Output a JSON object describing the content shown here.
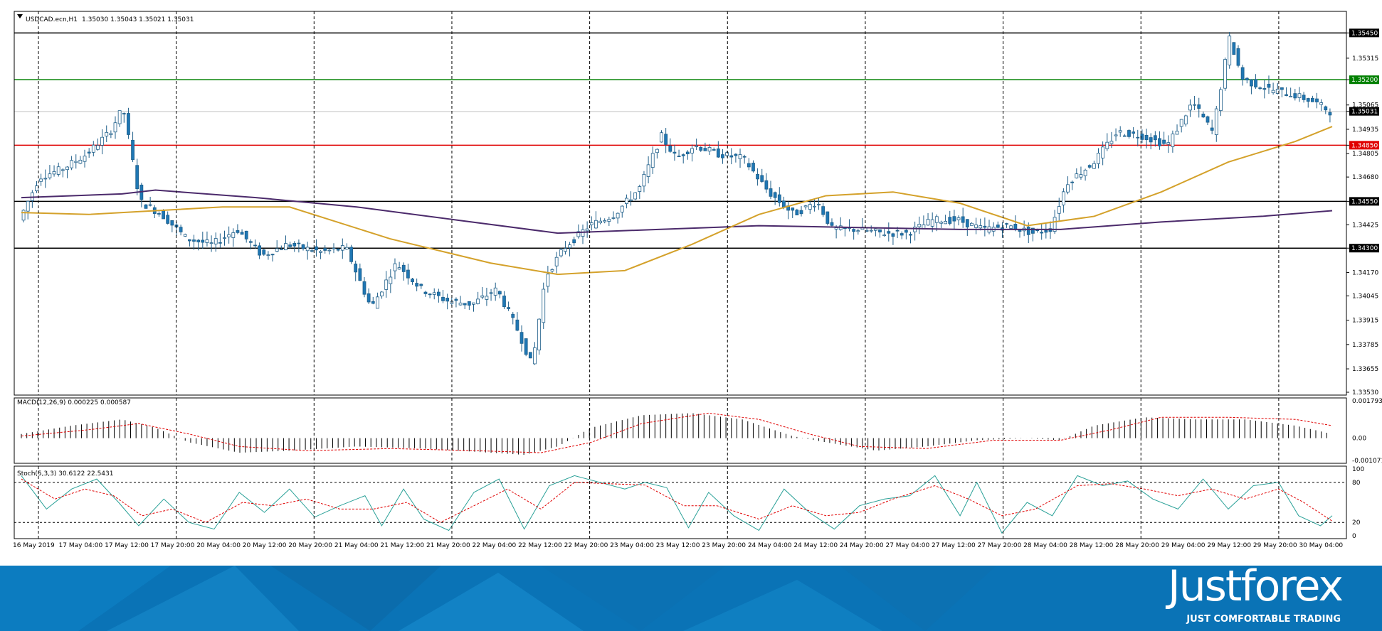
{
  "header": {
    "symbol": "USDCAD.ecn,H1",
    "ohlc": "1.35030 1.35043 1.35021 1.35031"
  },
  "price_axis": {
    "ticks": [
      "1.35450",
      "1.35315",
      "1.35200",
      "1.35065",
      "1.35031",
      "1.34935",
      "1.34850",
      "1.34805",
      "1.34680",
      "1.34550",
      "1.34425",
      "1.34300",
      "1.34170",
      "1.34045",
      "1.33915",
      "1.33785",
      "1.33655",
      "1.33530"
    ],
    "highlighted": [
      {
        "value": "1.35450",
        "color": "#000000"
      },
      {
        "value": "1.35200",
        "color": "#008000"
      },
      {
        "value": "1.35031",
        "color": "#000000"
      },
      {
        "value": "1.34850",
        "color": "#e00000"
      },
      {
        "value": "1.34550",
        "color": "#000000"
      },
      {
        "value": "1.34300",
        "color": "#000000"
      }
    ]
  },
  "macd": {
    "label": "MACD(12,26,9) 0.000225 0.000587",
    "ticks": [
      "0.001793",
      "0.00",
      "-0.001071"
    ]
  },
  "stoch": {
    "label": "Stoch(5,3,3) 30.6122 22.5431",
    "ticks": [
      "100",
      "80",
      "20",
      "0"
    ]
  },
  "time_axis": [
    "16 May 2019",
    "17 May 04:00",
    "17 May 12:00",
    "17 May 20:00",
    "20 May 04:00",
    "20 May 12:00",
    "20 May 20:00",
    "21 May 04:00",
    "21 May 12:00",
    "21 May 20:00",
    "22 May 04:00",
    "22 May 12:00",
    "22 May 20:00",
    "23 May 04:00",
    "23 May 12:00",
    "23 May 20:00",
    "24 May 04:00",
    "24 May 12:00",
    "24 May 20:00",
    "27 May 04:00",
    "27 May 12:00",
    "27 May 20:00",
    "28 May 04:00",
    "28 May 12:00",
    "28 May 20:00",
    "29 May 04:00",
    "29 May 12:00",
    "29 May 20:00",
    "30 May 04:00"
  ],
  "branding": {
    "logo": "Justforex",
    "tagline": "JUST COMFORTABLE TRADING"
  },
  "colors": {
    "up_candle": "#ffffff",
    "down_candle": "#1f77b4",
    "ma_fast": "#d4a12a",
    "ma_slow": "#4b2a6b",
    "macd_signal": "#e00000",
    "stoch_main": "#2aa198",
    "stoch_signal": "#e00000",
    "footer_bg": "#0a73b6"
  },
  "chart_data": {
    "type": "candlestick",
    "symbol": "USDCAD",
    "timeframe": "H1",
    "ylim": [
      1.3353,
      1.3555
    ],
    "horizontal_levels": [
      {
        "value": 1.3545,
        "color": "#000000"
      },
      {
        "value": 1.352,
        "color": "#008000"
      },
      {
        "value": 1.3485,
        "color": "#e00000"
      },
      {
        "value": 1.3455,
        "color": "#000000"
      },
      {
        "value": 1.343,
        "color": "#000000"
      }
    ],
    "price_path": [
      [
        0,
        1.3445
      ],
      [
        12,
        1.3468
      ],
      [
        25,
        1.3472
      ],
      [
        40,
        1.348
      ],
      [
        54,
        1.3492
      ],
      [
        62,
        1.3505
      ],
      [
        72,
        1.3455
      ],
      [
        85,
        1.3448
      ],
      [
        100,
        1.3435
      ],
      [
        115,
        1.3432
      ],
      [
        130,
        1.344
      ],
      [
        145,
        1.3426
      ],
      [
        160,
        1.3432
      ],
      [
        180,
        1.3428
      ],
      [
        195,
        1.343
      ],
      [
        210,
        1.3398
      ],
      [
        225,
        1.3422
      ],
      [
        240,
        1.3408
      ],
      [
        255,
        1.3402
      ],
      [
        270,
        1.34
      ],
      [
        285,
        1.3408
      ],
      [
        298,
        1.3385
      ],
      [
        306,
        1.3367
      ],
      [
        314,
        1.3415
      ],
      [
        325,
        1.343
      ],
      [
        340,
        1.3442
      ],
      [
        355,
        1.3448
      ],
      [
        370,
        1.3462
      ],
      [
        383,
        1.349
      ],
      [
        392,
        1.3478
      ],
      [
        403,
        1.3485
      ],
      [
        418,
        1.348
      ],
      [
        432,
        1.3478
      ],
      [
        447,
        1.346
      ],
      [
        462,
        1.3448
      ],
      [
        476,
        1.3455
      ],
      [
        485,
        1.344
      ],
      [
        500,
        1.344
      ],
      [
        515,
        1.3438
      ],
      [
        530,
        1.3438
      ],
      [
        545,
        1.3445
      ],
      [
        560,
        1.3445
      ],
      [
        575,
        1.344
      ],
      [
        590,
        1.3442
      ],
      [
        605,
        1.3438
      ],
      [
        615,
        1.344
      ],
      [
        625,
        1.3465
      ],
      [
        640,
        1.3475
      ],
      [
        655,
        1.3492
      ],
      [
        670,
        1.349
      ],
      [
        685,
        1.3485
      ],
      [
        700,
        1.3508
      ],
      [
        712,
        1.3492
      ],
      [
        722,
        1.3542
      ],
      [
        730,
        1.352
      ],
      [
        745,
        1.3515
      ],
      [
        760,
        1.3512
      ],
      [
        773,
        1.3508
      ],
      [
        782,
        1.3503
      ]
    ],
    "ma_fast": [
      [
        0,
        1.3449
      ],
      [
        40,
        1.3448
      ],
      [
        80,
        1.345
      ],
      [
        120,
        1.3452
      ],
      [
        160,
        1.3452
      ],
      [
        220,
        1.3435
      ],
      [
        280,
        1.3422
      ],
      [
        320,
        1.3416
      ],
      [
        360,
        1.3418
      ],
      [
        400,
        1.3432
      ],
      [
        440,
        1.3448
      ],
      [
        480,
        1.3458
      ],
      [
        520,
        1.346
      ],
      [
        560,
        1.3454
      ],
      [
        600,
        1.3442
      ],
      [
        640,
        1.3447
      ],
      [
        680,
        1.346
      ],
      [
        720,
        1.3476
      ],
      [
        760,
        1.3487
      ],
      [
        782,
        1.3495
      ]
    ],
    "ma_slow": [
      [
        0,
        1.3457
      ],
      [
        60,
        1.3459
      ],
      [
        80,
        1.3461
      ],
      [
        140,
        1.3457
      ],
      [
        200,
        1.3452
      ],
      [
        260,
        1.3445
      ],
      [
        320,
        1.3438
      ],
      [
        380,
        1.344
      ],
      [
        440,
        1.3442
      ],
      [
        500,
        1.3441
      ],
      [
        560,
        1.344
      ],
      [
        620,
        1.344
      ],
      [
        680,
        1.3444
      ],
      [
        740,
        1.3447
      ],
      [
        782,
        1.345
      ]
    ],
    "macd": {
      "ylim": [
        -0.001071,
        0.001793
      ],
      "histogram": [
        [
          0,
          0.0002
        ],
        [
          30,
          0.0006
        ],
        [
          60,
          0.0009
        ],
        [
          80,
          0.0005
        ],
        [
          100,
          -0.0002
        ],
        [
          130,
          -0.0007
        ],
        [
          160,
          -0.0006
        ],
        [
          200,
          -0.0004
        ],
        [
          240,
          -0.0005
        ],
        [
          280,
          -0.0007
        ],
        [
          300,
          -0.0008
        ],
        [
          320,
          -0.0004
        ],
        [
          340,
          0.0005
        ],
        [
          370,
          0.0011
        ],
        [
          400,
          0.0012
        ],
        [
          430,
          0.0009
        ],
        [
          460,
          0.0001
        ],
        [
          480,
          -0.0002
        ],
        [
          510,
          -0.0006
        ],
        [
          540,
          -0.0004
        ],
        [
          570,
          -0.0001
        ],
        [
          600,
          0.0
        ],
        [
          620,
          -0.0001
        ],
        [
          640,
          0.0006
        ],
        [
          670,
          0.001
        ],
        [
          700,
          0.0009
        ],
        [
          730,
          0.0009
        ],
        [
          760,
          0.0006
        ],
        [
          782,
          0.0002
        ]
      ],
      "signal": [
        [
          0,
          0.0001
        ],
        [
          40,
          0.0004
        ],
        [
          70,
          0.0007
        ],
        [
          100,
          0.0002
        ],
        [
          130,
          -0.0004
        ],
        [
          170,
          -0.0006
        ],
        [
          220,
          -0.0005
        ],
        [
          270,
          -0.0006
        ],
        [
          310,
          -0.0007
        ],
        [
          340,
          -0.0002
        ],
        [
          370,
          0.0007
        ],
        [
          410,
          0.0012
        ],
        [
          440,
          0.0009
        ],
        [
          470,
          0.0002
        ],
        [
          500,
          -0.0004
        ],
        [
          540,
          -0.0005
        ],
        [
          580,
          -0.0001
        ],
        [
          620,
          -0.0001
        ],
        [
          650,
          0.0004
        ],
        [
          680,
          0.001
        ],
        [
          720,
          0.001
        ],
        [
          760,
          0.0009
        ],
        [
          782,
          0.0006
        ]
      ]
    },
    "stoch": {
      "ylim": [
        0,
        100
      ],
      "levels": [
        80,
        20
      ],
      "main": [
        [
          0,
          90
        ],
        [
          15,
          40
        ],
        [
          30,
          70
        ],
        [
          45,
          85
        ],
        [
          58,
          50
        ],
        [
          70,
          15
        ],
        [
          85,
          55
        ],
        [
          100,
          20
        ],
        [
          115,
          10
        ],
        [
          130,
          65
        ],
        [
          145,
          35
        ],
        [
          160,
          70
        ],
        [
          175,
          28
        ],
        [
          190,
          45
        ],
        [
          205,
          60
        ],
        [
          215,
          15
        ],
        [
          228,
          70
        ],
        [
          240,
          25
        ],
        [
          255,
          8
        ],
        [
          270,
          65
        ],
        [
          285,
          85
        ],
        [
          300,
          10
        ],
        [
          315,
          75
        ],
        [
          330,
          90
        ],
        [
          345,
          80
        ],
        [
          360,
          70
        ],
        [
          372,
          80
        ],
        [
          385,
          72
        ],
        [
          398,
          12
        ],
        [
          410,
          65
        ],
        [
          425,
          30
        ],
        [
          440,
          8
        ],
        [
          455,
          70
        ],
        [
          470,
          35
        ],
        [
          485,
          10
        ],
        [
          500,
          45
        ],
        [
          515,
          55
        ],
        [
          530,
          60
        ],
        [
          545,
          90
        ],
        [
          560,
          30
        ],
        [
          570,
          80
        ],
        [
          585,
          4
        ],
        [
          600,
          50
        ],
        [
          615,
          30
        ],
        [
          630,
          90
        ],
        [
          645,
          75
        ],
        [
          660,
          82
        ],
        [
          675,
          55
        ],
        [
          690,
          40
        ],
        [
          705,
          85
        ],
        [
          720,
          40
        ],
        [
          735,
          75
        ],
        [
          750,
          80
        ],
        [
          762,
          30
        ],
        [
          775,
          15
        ],
        [
          782,
          30
        ]
      ],
      "signal": [
        [
          0,
          85
        ],
        [
          20,
          55
        ],
        [
          38,
          70
        ],
        [
          55,
          60
        ],
        [
          72,
          30
        ],
        [
          90,
          40
        ],
        [
          110,
          20
        ],
        [
          132,
          50
        ],
        [
          150,
          45
        ],
        [
          170,
          55
        ],
        [
          190,
          40
        ],
        [
          210,
          40
        ],
        [
          230,
          50
        ],
        [
          250,
          20
        ],
        [
          270,
          45
        ],
        [
          290,
          70
        ],
        [
          310,
          40
        ],
        [
          330,
          80
        ],
        [
          350,
          78
        ],
        [
          372,
          76
        ],
        [
          395,
          45
        ],
        [
          415,
          45
        ],
        [
          440,
          25
        ],
        [
          460,
          45
        ],
        [
          480,
          30
        ],
        [
          500,
          35
        ],
        [
          520,
          55
        ],
        [
          545,
          75
        ],
        [
          565,
          55
        ],
        [
          585,
          30
        ],
        [
          605,
          40
        ],
        [
          630,
          75
        ],
        [
          650,
          78
        ],
        [
          670,
          70
        ],
        [
          690,
          60
        ],
        [
          710,
          70
        ],
        [
          730,
          55
        ],
        [
          750,
          70
        ],
        [
          765,
          50
        ],
        [
          782,
          22
        ]
      ]
    }
  }
}
